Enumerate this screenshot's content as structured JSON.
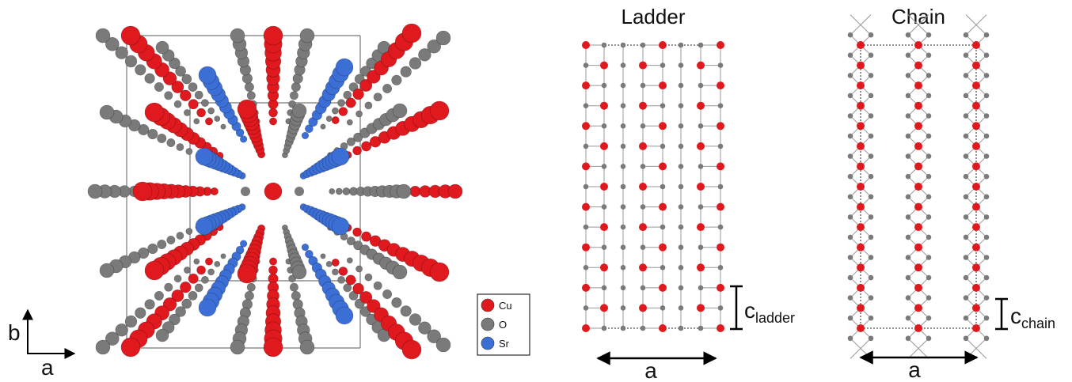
{
  "structure_view": {
    "axes": {
      "vertical": "b",
      "horizontal": "a"
    },
    "legend": [
      {
        "label": "Cu",
        "color": "#e0191e"
      },
      {
        "label": "O",
        "color": "#7a7a7a"
      },
      {
        "label": "Sr",
        "color": "#3c6fd6"
      }
    ]
  },
  "ladder": {
    "title": "Ladder",
    "width_label": "a",
    "period_label": "c",
    "period_subscript": "ladder"
  },
  "chain": {
    "title": "Chain",
    "width_label": "a",
    "period_label": "c",
    "period_subscript": "chain"
  }
}
